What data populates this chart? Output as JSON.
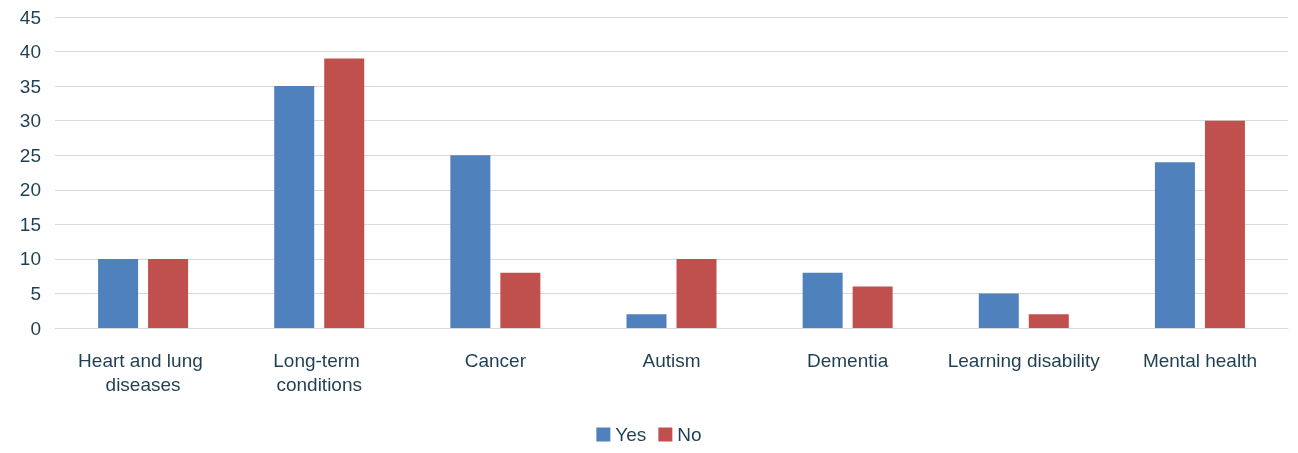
{
  "chart_data": {
    "type": "bar",
    "categories": [
      "Heart and lung diseases",
      "Long-term conditions",
      "Cancer",
      "Autism",
      "Dementia",
      "Learning disability",
      "Mental health"
    ],
    "series": [
      {
        "name": "Yes",
        "color": "#4f81bd",
        "values": [
          10,
          35,
          25,
          2,
          8,
          5,
          24
        ]
      },
      {
        "name": "No",
        "color": "#c0504d",
        "values": [
          10,
          39,
          8,
          10,
          6,
          2,
          30
        ]
      }
    ],
    "ylim": [
      0,
      45
    ],
    "yticks": [
      0,
      5,
      10,
      15,
      20,
      25,
      30,
      35,
      40,
      45
    ],
    "grid": "y",
    "legend": "bottom"
  }
}
